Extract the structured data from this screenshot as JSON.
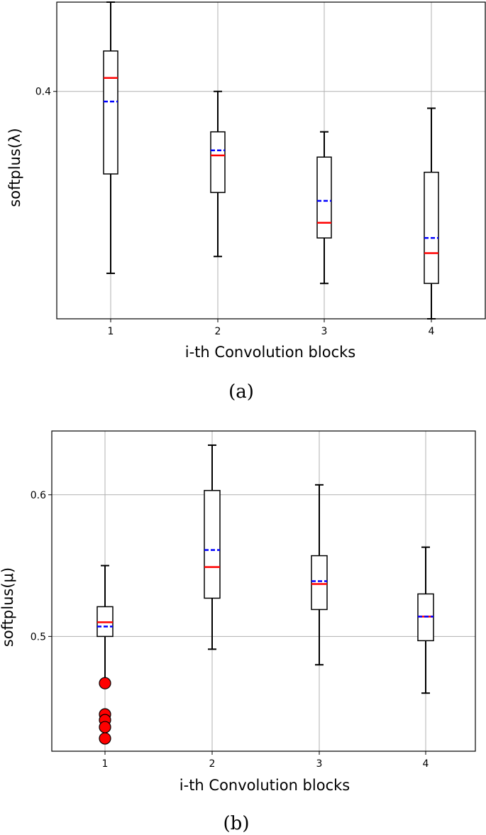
{
  "chart_data": [
    {
      "type": "box",
      "panel": "(a)",
      "caption": "(a)",
      "xlabel": "i-th Convolution blocks",
      "ylabel": "softplus(λ)",
      "categories": [
        "1",
        "2",
        "3",
        "4"
      ],
      "yticks": [
        {
          "value": 0.4,
          "label": "0.4"
        }
      ],
      "ylim": [
        0.265,
        0.453
      ],
      "grid": true,
      "boxes": [
        {
          "category": "1",
          "whisker_low": 0.292,
          "q1": 0.351,
          "median": 0.408,
          "mean": 0.394,
          "q3": 0.424,
          "whisker_high": 0.455
        },
        {
          "category": "2",
          "whisker_low": 0.302,
          "q1": 0.34,
          "median": 0.362,
          "mean": 0.365,
          "q3": 0.376,
          "whisker_high": 0.4
        },
        {
          "category": "3",
          "whisker_low": 0.286,
          "q1": 0.313,
          "median": 0.322,
          "mean": 0.335,
          "q3": 0.361,
          "whisker_high": 0.376
        },
        {
          "category": "4",
          "whisker_low": 0.26,
          "q1": 0.286,
          "median": 0.304,
          "mean": 0.313,
          "q3": 0.352,
          "whisker_high": 0.39
        }
      ],
      "median_color": "#ff0000",
      "mean_color": "#0000ff"
    },
    {
      "type": "box",
      "panel": "(b)",
      "caption": "(b)",
      "xlabel": "i-th Convolution blocks",
      "ylabel": "softplus(μ)",
      "categories": [
        "1",
        "2",
        "3",
        "4"
      ],
      "yticks": [
        {
          "value": 0.5,
          "label": "0.5"
        },
        {
          "value": 0.6,
          "label": "0.6"
        }
      ],
      "ylim": [
        0.419,
        0.645
      ],
      "grid": true,
      "boxes": [
        {
          "category": "1",
          "whisker_low": 0.467,
          "q1": 0.5,
          "median": 0.51,
          "mean": 0.507,
          "q3": 0.521,
          "whisker_high": 0.55,
          "outliers": [
            0.467,
            0.445,
            0.441,
            0.436,
            0.428
          ]
        },
        {
          "category": "2",
          "whisker_low": 0.491,
          "q1": 0.527,
          "median": 0.549,
          "mean": 0.561,
          "q3": 0.603,
          "whisker_high": 0.635
        },
        {
          "category": "3",
          "whisker_low": 0.48,
          "q1": 0.519,
          "median": 0.537,
          "mean": 0.539,
          "q3": 0.557,
          "whisker_high": 0.607
        },
        {
          "category": "4",
          "whisker_low": 0.46,
          "q1": 0.497,
          "median": 0.514,
          "mean": 0.514,
          "q3": 0.53,
          "whisker_high": 0.563
        }
      ],
      "median_color": "#ff0000",
      "mean_color": "#0000ff",
      "outlier_color": "#ff0000"
    }
  ]
}
